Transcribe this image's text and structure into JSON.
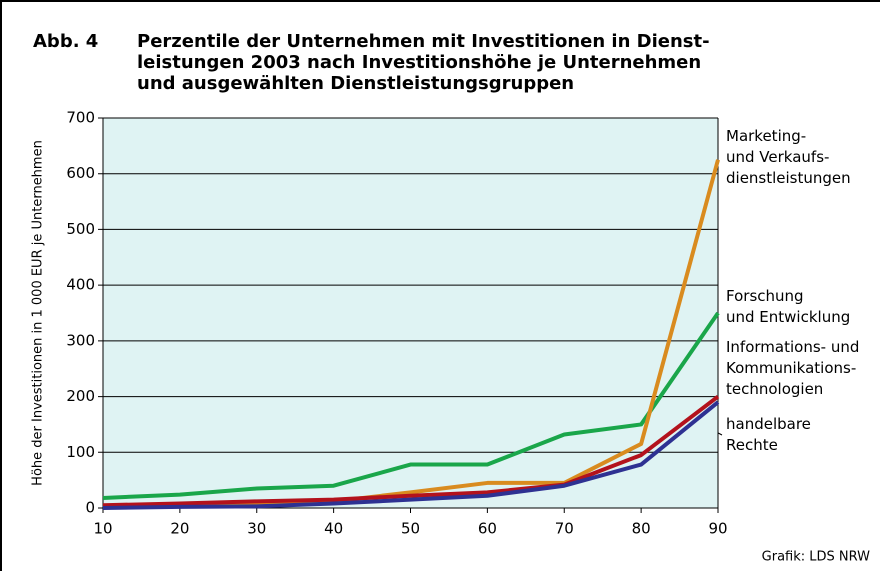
{
  "chart_data": {
    "type": "line",
    "figure_label": "Abb. 4",
    "title_lines": [
      "Perzentile der Unternehmen mit Investitionen in Dienst-",
      "leistungen  2003 nach Investitionshöhe je Unternehmen",
      "und ausgewählten Dienstleistungsgruppen"
    ],
    "ylabel": "Höhe der Investitionen in 1 000 EUR je Unternehmen",
    "source": "Grafik: LDS NRW",
    "x": [
      10,
      20,
      30,
      40,
      50,
      60,
      70,
      80,
      90
    ],
    "xlim": [
      10,
      90
    ],
    "xticks": [
      10,
      20,
      30,
      40,
      50,
      60,
      70,
      80,
      90
    ],
    "ylim": [
      0,
      700
    ],
    "yticks": [
      0,
      100,
      200,
      300,
      400,
      500,
      600,
      700
    ],
    "grid": true,
    "background": "#dff3f3",
    "series": [
      {
        "name": "Forschung\nund Entwicklung",
        "color": "#1aa64a",
        "values": [
          18,
          24,
          35,
          40,
          78,
          78,
          132,
          150,
          350
        ]
      },
      {
        "name": "Marketing-\nund Verkaufs-\ndienstleistungen",
        "color": "#d98b1f",
        "values": [
          3,
          5,
          8,
          12,
          28,
          45,
          45,
          115,
          625
        ]
      },
      {
        "name": "Informations- und\nKommunikations-\ntechnologien",
        "color": "#b3121c",
        "values": [
          5,
          8,
          12,
          15,
          22,
          28,
          42,
          95,
          200
        ]
      },
      {
        "name": "handelbare\nRechte",
        "color": "#2e3192",
        "values": [
          0,
          2,
          3,
          8,
          15,
          22,
          40,
          78,
          190
        ]
      }
    ]
  }
}
